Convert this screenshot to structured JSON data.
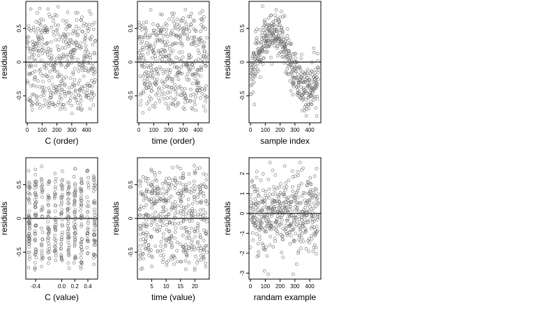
{
  "chart_data": [
    {
      "type": "scatter",
      "xlabel": "C (order)",
      "ylabel": "residuals",
      "xlim": [
        -10,
        475
      ],
      "ylim": [
        -0.9,
        0.9
      ],
      "xticks": [
        0,
        100,
        200,
        300,
        400
      ],
      "yticks": [
        -0.5,
        0.0,
        0.5
      ],
      "zero_line": true,
      "x_kind": "index",
      "n_points": 460,
      "pattern": "uniform",
      "spread": 0.32,
      "x": [],
      "y": []
    },
    {
      "type": "scatter",
      "xlabel": "time (order)",
      "ylabel": "residuals",
      "xlim": [
        -10,
        475
      ],
      "ylim": [
        -0.9,
        0.9
      ],
      "xticks": [
        0,
        100,
        200,
        300,
        400
      ],
      "yticks": [
        -0.5,
        0.0,
        0.5
      ],
      "zero_line": true,
      "x_kind": "index",
      "n_points": 460,
      "pattern": "uniform",
      "spread": 0.32,
      "x": [],
      "y": []
    },
    {
      "type": "scatter",
      "xlabel": "sample index",
      "ylabel": "residuals",
      "xlim": [
        -10,
        475
      ],
      "ylim": [
        -0.9,
        0.9
      ],
      "xticks": [
        0,
        100,
        200,
        300,
        400
      ],
      "yticks": [
        -0.5,
        0.0,
        0.5
      ],
      "zero_line": true,
      "x_kind": "index",
      "n_points": 460,
      "pattern": "wave",
      "spread": 0.18,
      "x": [],
      "y": []
    },
    {
      "type": "scatter",
      "xlabel": "C (value)",
      "ylabel": "residuals",
      "xlim": [
        -0.55,
        0.55
      ],
      "ylim": [
        -0.9,
        0.9
      ],
      "xticks": [
        -0.4,
        0.0,
        0.2,
        0.4
      ],
      "xticklabels": [
        "-0.4",
        "0.0",
        "0.2",
        "0.4"
      ],
      "yticks": [
        -0.5,
        0.0,
        0.5
      ],
      "zero_line": true,
      "x_kind": "discrete",
      "x_levels": [
        -0.5,
        -0.4,
        -0.3,
        -0.2,
        -0.1,
        0.0,
        0.1,
        0.2,
        0.3,
        0.4,
        0.5
      ],
      "n_points": 460,
      "pattern": "uniform",
      "spread": 0.32,
      "x": [],
      "y": []
    },
    {
      "type": "scatter",
      "xlabel": "time (value)",
      "ylabel": "residuals",
      "xlim": [
        0,
        25
      ],
      "ylim": [
        -0.9,
        0.9
      ],
      "xticks": [
        5,
        10,
        15,
        20
      ],
      "yticks": [
        -0.5,
        0.0,
        0.5
      ],
      "zero_line": true,
      "x_kind": "discrete",
      "x_levels": [
        1,
        2,
        3,
        4,
        5,
        6,
        7,
        8,
        9,
        10,
        11,
        12,
        13,
        14,
        15,
        16,
        17,
        18,
        19,
        20,
        21,
        22,
        23,
        24
      ],
      "n_points": 460,
      "pattern": "uniform",
      "spread": 0.32,
      "x": [],
      "y": []
    },
    {
      "type": "scatter",
      "xlabel": "randam example",
      "ylabel": "residuals",
      "xlim": [
        -10,
        475
      ],
      "ylim": [
        -3.3,
        2.8
      ],
      "xticks": [
        0,
        100,
        200,
        300,
        400
      ],
      "yticks": [
        -3,
        -2,
        -1,
        0,
        1,
        2
      ],
      "zero_line": true,
      "x_kind": "index",
      "n_points": 460,
      "pattern": "normal",
      "spread": 1.0,
      "x": [],
      "y": []
    }
  ]
}
